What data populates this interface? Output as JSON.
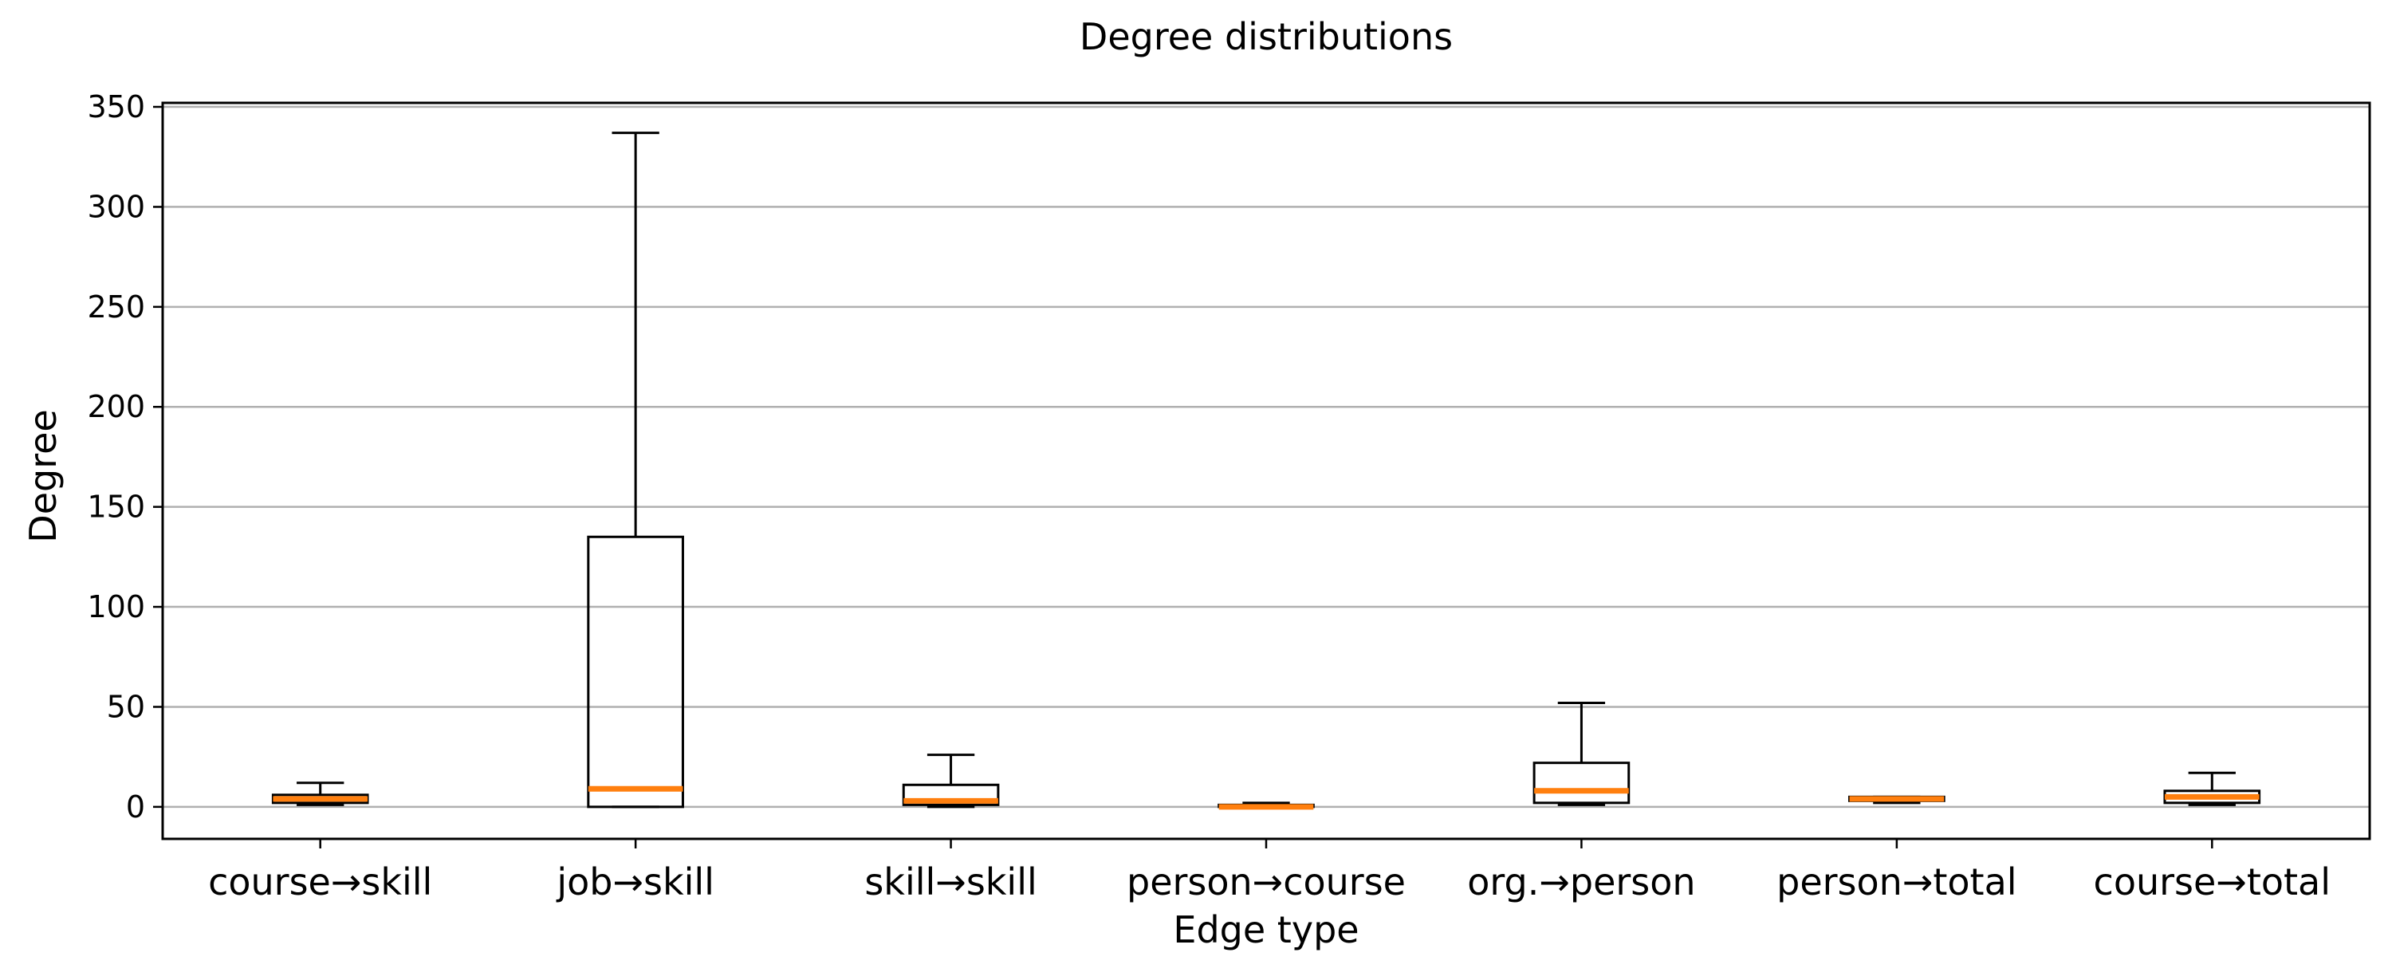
{
  "chart_data": {
    "type": "box",
    "title": "Degree distributions",
    "xlabel": "Edge type",
    "ylabel": "Degree",
    "ylim": [
      -16,
      352
    ],
    "yticks": [
      0,
      50,
      100,
      150,
      200,
      250,
      300,
      350
    ],
    "grid": "horizontal",
    "categories": [
      "course→skill",
      "job→skill",
      "skill→skill",
      "person→course",
      "org.→person",
      "person→total",
      "course→total"
    ],
    "boxes": [
      {
        "whislo": 1,
        "q1": 2,
        "med": 4,
        "q3": 6,
        "whishi": 12
      },
      {
        "whislo": 0,
        "q1": 0,
        "med": 9,
        "q3": 135,
        "whishi": 337
      },
      {
        "whislo": 0,
        "q1": 1,
        "med": 3,
        "q3": 11,
        "whishi": 26
      },
      {
        "whislo": 0,
        "q1": 0,
        "med": 0,
        "q3": 1,
        "whishi": 2
      },
      {
        "whislo": 1,
        "q1": 2,
        "med": 8,
        "q3": 22,
        "whishi": 52
      },
      {
        "whislo": 2,
        "q1": 3,
        "med": 4,
        "q3": 5,
        "whishi": 5
      },
      {
        "whislo": 1,
        "q1": 2,
        "med": 5,
        "q3": 8,
        "whishi": 17
      }
    ],
    "colors": {
      "median": "#ff7f0e",
      "box": "#000000",
      "grid": "#b0b0b0"
    }
  }
}
